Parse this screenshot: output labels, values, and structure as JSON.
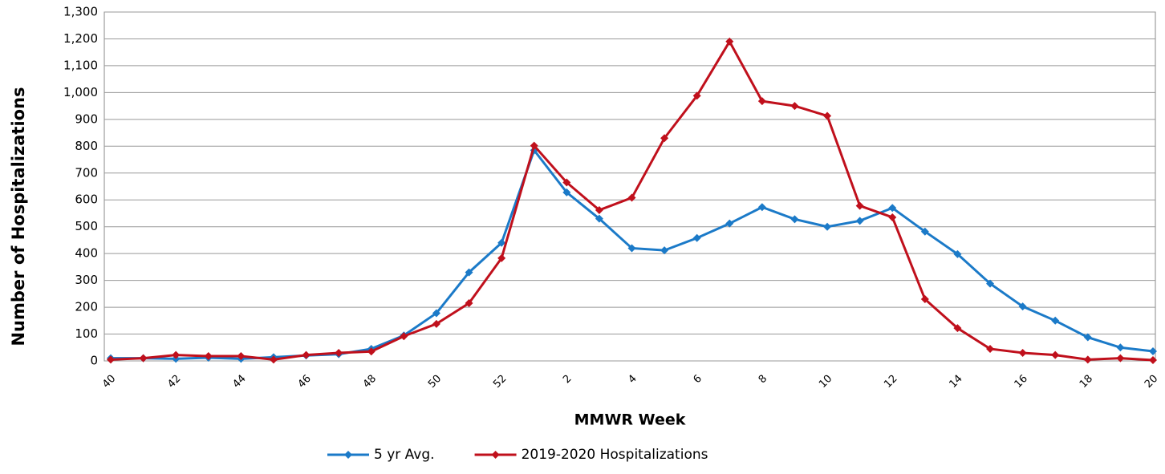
{
  "chart_data": {
    "type": "line",
    "x_label": "MMWR Week",
    "y_label": "Number of Hospitalizations",
    "categories": [
      "40",
      null,
      "42",
      null,
      "44",
      null,
      "46",
      null,
      "48",
      null,
      "50",
      null,
      "52",
      null,
      "2",
      null,
      "4",
      null,
      "6",
      null,
      "8",
      null,
      "10",
      null,
      "12",
      null,
      "14",
      null,
      "16",
      null,
      "18",
      null,
      "20"
    ],
    "series": [
      {
        "name": "5 yr Avg.",
        "color": "#1b7ac8",
        "values": [
          10,
          10,
          8,
          12,
          8,
          14,
          20,
          25,
          45,
          95,
          178,
          330,
          440,
          785,
          628,
          530,
          420,
          412,
          458,
          512,
          573,
          528,
          500,
          522,
          570,
          482,
          398,
          288,
          203,
          150,
          88,
          50,
          36
        ]
      },
      {
        "name": "2019-2020 Hospitalizations",
        "color": "#c0101c",
        "values": [
          5,
          10,
          22,
          18,
          18,
          5,
          22,
          30,
          35,
          92,
          138,
          215,
          383,
          802,
          665,
          562,
          608,
          830,
          988,
          1190,
          968,
          950,
          913,
          578,
          535,
          230,
          122,
          45,
          30,
          22,
          5,
          10,
          3
        ]
      }
    ],
    "ylim": [
      0,
      1300
    ],
    "yticks": [
      0,
      100,
      200,
      300,
      400,
      500,
      600,
      700,
      800,
      900,
      {
        "value": 1000,
        "label": "1,000"
      },
      {
        "value": 1100,
        "label": "1,100"
      },
      {
        "value": 1200,
        "label": "1,200"
      },
      {
        "value": 1300,
        "label": "1,300"
      }
    ],
    "grid": true,
    "legend": "bottom"
  }
}
